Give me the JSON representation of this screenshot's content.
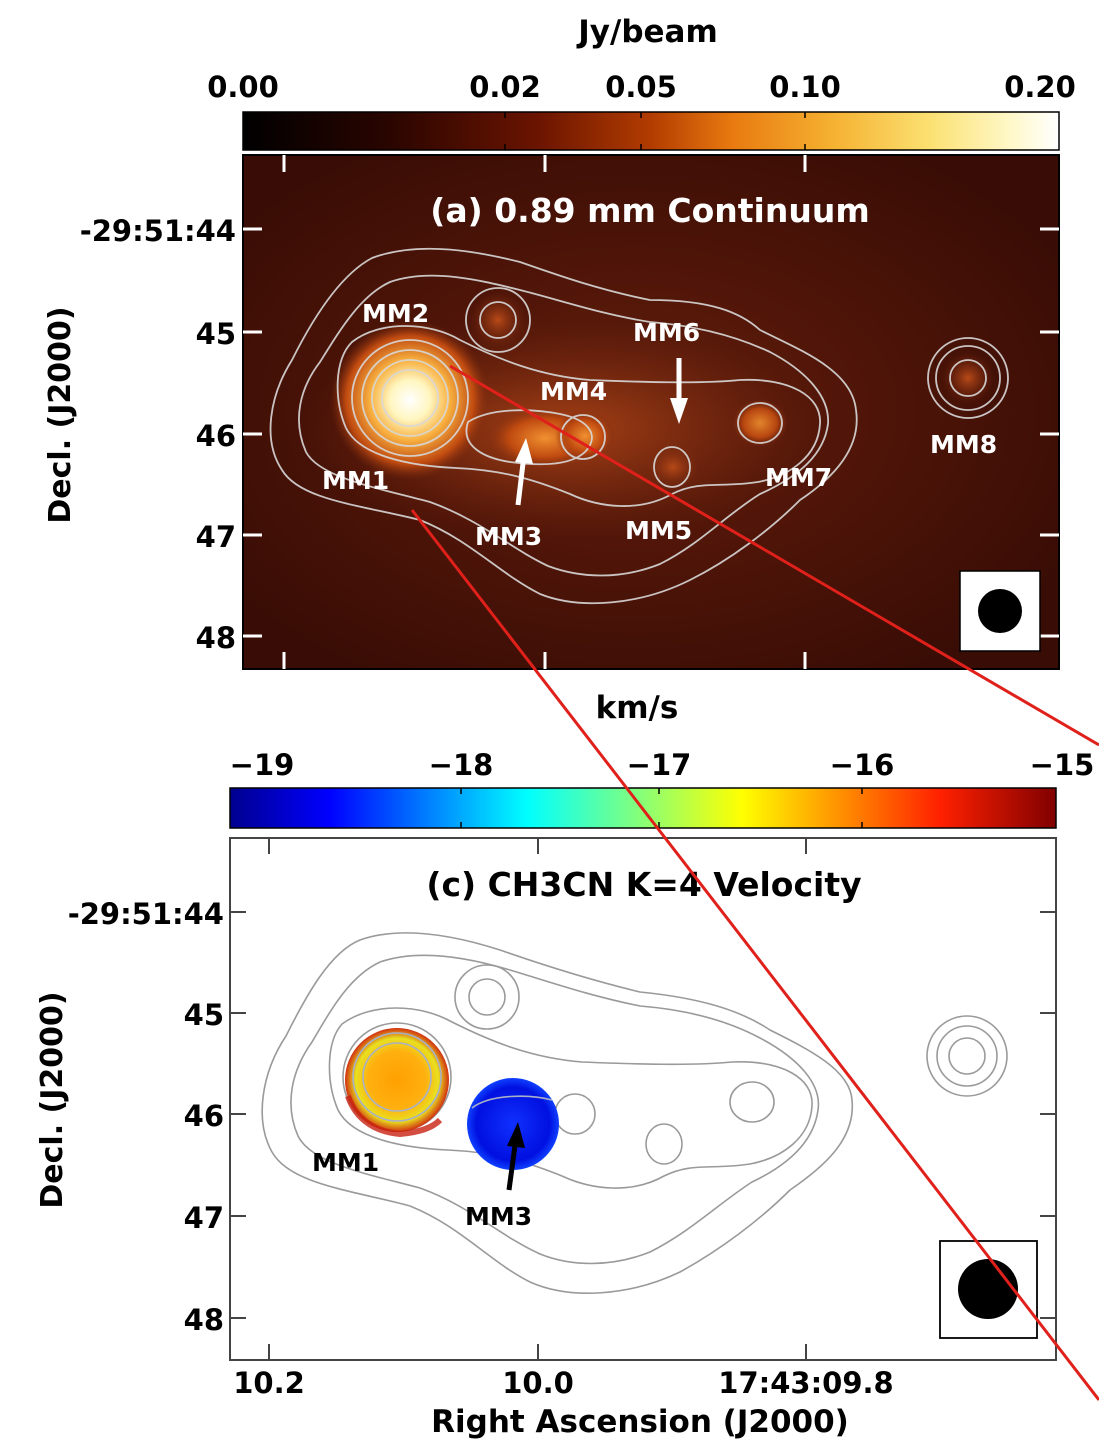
{
  "panel_a": {
    "colorbar_unit": "Jy/beam",
    "colorbar_ticks": [
      "0.00",
      "0.02",
      "0.05",
      "0.10",
      "0.20"
    ],
    "title": "(a) 0.89 mm Continuum",
    "dec_ticks": [
      "-29:51:44",
      "45",
      "46",
      "47",
      "48"
    ],
    "ylabel": "Decl. (J2000)",
    "sources": [
      "MM1",
      "MM2",
      "MM3",
      "MM4",
      "MM5",
      "MM6",
      "MM7",
      "MM8"
    ]
  },
  "panel_c": {
    "colorbar_unit": "km/s",
    "colorbar_ticks": [
      "−19",
      "−18",
      "−17",
      "−16",
      "−15"
    ],
    "title": "(c) CH3CN K=4 Velocity",
    "dec_ticks": [
      "-29:51:44",
      "45",
      "46",
      "47",
      "48"
    ],
    "ylabel": "Decl. (J2000)",
    "sources": [
      "MM1",
      "MM3"
    ],
    "ra_ticks": [
      "10.2",
      "10.0",
      "17:43:09.8"
    ],
    "xlabel": "Right Ascension (J2000)"
  },
  "colors": {
    "pointer_line": "#e0201a",
    "contour_a": "#d8d8d8",
    "contour_c": "#9a9a9a"
  }
}
